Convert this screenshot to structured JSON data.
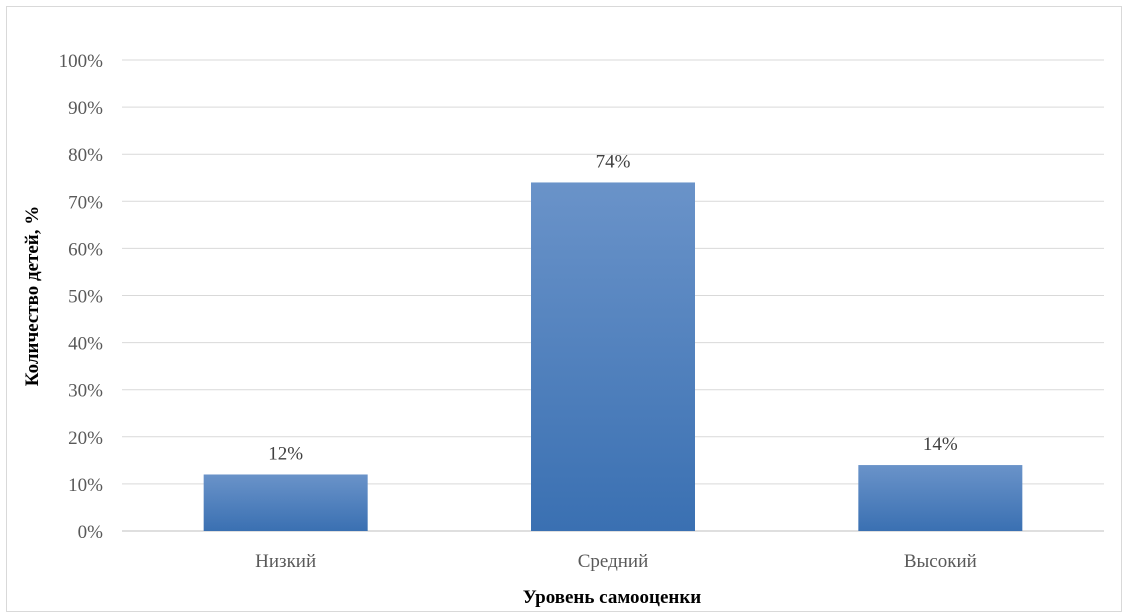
{
  "chart_data": {
    "type": "bar",
    "categories": [
      "Низкий",
      "Средний",
      "Высокий"
    ],
    "values": [
      12,
      74,
      14
    ],
    "data_labels": [
      "12%",
      "74%",
      "14%"
    ],
    "title": "",
    "xlabel": "Уровень самооценки",
    "ylabel": "Количество детей, %",
    "ylim": [
      0,
      100
    ],
    "y_ticks": [
      {
        "value": 0,
        "label": "0%"
      },
      {
        "value": 10,
        "label": "10%"
      },
      {
        "value": 20,
        "label": "20%"
      },
      {
        "value": 30,
        "label": "30%"
      },
      {
        "value": 40,
        "label": "40%"
      },
      {
        "value": 50,
        "label": "50%"
      },
      {
        "value": 60,
        "label": "60%"
      },
      {
        "value": 70,
        "label": "70%"
      },
      {
        "value": 80,
        "label": "80%"
      },
      {
        "value": 90,
        "label": "90%"
      },
      {
        "value": 100,
        "label": "100%"
      }
    ],
    "grid": true,
    "legend": "none",
    "colors": {
      "bar_top": "#6a93c9",
      "bar_bottom": "#3a70b2",
      "grid": "#d9d9d9",
      "axis": "#bfbfbf"
    }
  }
}
